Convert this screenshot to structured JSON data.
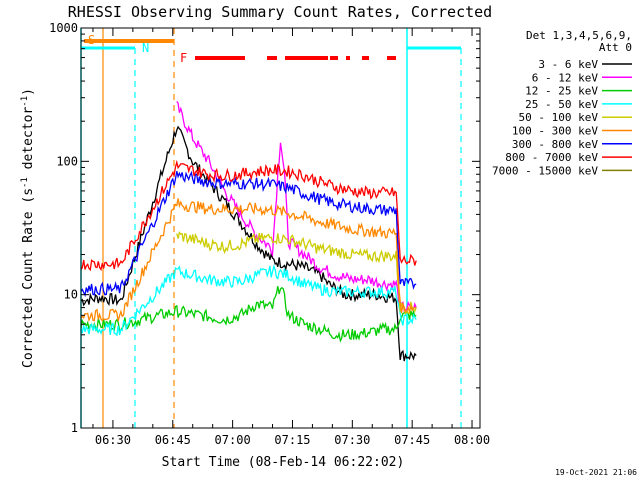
{
  "chart_data": {
    "type": "line",
    "title": "RHESSI Observing Summary Count Rates, Corrected",
    "xlabel": "Start Time (08-Feb-14 06:22:02)",
    "ylabel": "Corrected Count Rate (s",
    "ylabel_sup1": "-1",
    "ylabel_mid": " detector",
    "ylabel_sup2": "-1",
    "ylabel_end": ")",
    "xlim_min": [
      0,
      100
    ],
    "x_tick_minutes": [
      8,
      23,
      38,
      53,
      68,
      83,
      98
    ],
    "x_tick_labels": [
      "06:30",
      "06:45",
      "07:00",
      "07:15",
      "07:30",
      "07:45",
      "08:00"
    ],
    "y_scale": "log",
    "ylim": [
      1,
      1000
    ],
    "y_tick_values": [
      1,
      10,
      100,
      1000
    ],
    "y_tick_labels": [
      "1",
      "10",
      "100",
      "1000"
    ],
    "legend_header": [
      "Det 1,3,4,5,6,9,",
      "Att 0"
    ],
    "legend_placement": "right",
    "series": [
      {
        "name": "3 - 6 keV",
        "color": "#000000",
        "points": [
          [
            0,
            9
          ],
          [
            5,
            9.5
          ],
          [
            10,
            9
          ],
          [
            24,
            180
          ],
          [
            28,
            100
          ],
          [
            32,
            70
          ],
          [
            36,
            50
          ],
          [
            40,
            35
          ],
          [
            44,
            24
          ],
          [
            48,
            18
          ],
          [
            52,
            17
          ],
          [
            56,
            16
          ],
          [
            60,
            14
          ],
          [
            62,
            12
          ],
          [
            64,
            11
          ],
          [
            66,
            10
          ],
          [
            70,
            10
          ],
          [
            74,
            10
          ],
          [
            78,
            9.5
          ],
          [
            79,
            9.5
          ],
          [
            80,
            3.5
          ],
          [
            83,
            3.5
          ],
          [
            84,
            3.5
          ]
        ]
      },
      {
        "name": "6 - 12 keV",
        "color": "#ff00ff",
        "points": [
          [
            24,
            260
          ],
          [
            28,
            150
          ],
          [
            32,
            100
          ],
          [
            36,
            60
          ],
          [
            40,
            40
          ],
          [
            44,
            28
          ],
          [
            48,
            22
          ],
          [
            50,
            150
          ],
          [
            51,
            80
          ],
          [
            52,
            25
          ],
          [
            56,
            20
          ],
          [
            60,
            16
          ],
          [
            64,
            14
          ],
          [
            68,
            13
          ],
          [
            72,
            13
          ],
          [
            76,
            12
          ],
          [
            79,
            12
          ],
          [
            80,
            8
          ],
          [
            84,
            8
          ]
        ]
      },
      {
        "name": "12 - 25 keV",
        "color": "#00cc00",
        "points": [
          [
            0,
            6
          ],
          [
            10,
            6
          ],
          [
            24,
            7.5
          ],
          [
            30,
            7
          ],
          [
            36,
            6.5
          ],
          [
            40,
            7
          ],
          [
            44,
            8.5
          ],
          [
            48,
            8
          ],
          [
            50,
            12
          ],
          [
            52,
            7
          ],
          [
            56,
            6
          ],
          [
            60,
            5.5
          ],
          [
            64,
            5
          ],
          [
            68,
            5
          ],
          [
            72,
            5.2
          ],
          [
            76,
            5.5
          ],
          [
            79,
            5.5
          ],
          [
            80,
            7
          ],
          [
            84,
            7
          ]
        ]
      },
      {
        "name": "25 - 50 keV",
        "color": "#00ffff",
        "points": [
          [
            0,
            5.5
          ],
          [
            10,
            5.5
          ],
          [
            24,
            15
          ],
          [
            28,
            14
          ],
          [
            32,
            13
          ],
          [
            36,
            12.5
          ],
          [
            40,
            12.5
          ],
          [
            44,
            14
          ],
          [
            48,
            15
          ],
          [
            52,
            14
          ],
          [
            56,
            12
          ],
          [
            60,
            11
          ],
          [
            64,
            10.5
          ],
          [
            68,
            10.5
          ],
          [
            72,
            10.5
          ],
          [
            76,
            10.5
          ],
          [
            79,
            10.5
          ],
          [
            80,
            6.5
          ],
          [
            84,
            6.5
          ]
        ]
      },
      {
        "name": "50 - 100 keV",
        "color": "#cccc00",
        "points": [
          [
            24,
            28
          ],
          [
            28,
            26
          ],
          [
            32,
            24
          ],
          [
            36,
            23
          ],
          [
            40,
            24
          ],
          [
            44,
            26
          ],
          [
            48,
            27
          ],
          [
            52,
            26
          ],
          [
            56,
            24
          ],
          [
            60,
            22
          ],
          [
            64,
            21
          ],
          [
            68,
            20
          ],
          [
            72,
            19.5
          ],
          [
            76,
            19.5
          ],
          [
            79,
            19.5
          ],
          [
            80,
            8
          ],
          [
            84,
            8
          ]
        ]
      },
      {
        "name": "100 - 300 keV",
        "color": "#ff8800",
        "points": [
          [
            0,
            7
          ],
          [
            10,
            7
          ],
          [
            24,
            48
          ],
          [
            28,
            46
          ],
          [
            32,
            44
          ],
          [
            36,
            44
          ],
          [
            40,
            44
          ],
          [
            44,
            44
          ],
          [
            48,
            43
          ],
          [
            52,
            41
          ],
          [
            56,
            38
          ],
          [
            60,
            35
          ],
          [
            64,
            33
          ],
          [
            68,
            31
          ],
          [
            72,
            30
          ],
          [
            76,
            29
          ],
          [
            79,
            29
          ],
          [
            80,
            8
          ],
          [
            84,
            8
          ]
        ]
      },
      {
        "name": "300 - 800 keV",
        "color": "#0000ff",
        "points": [
          [
            0,
            11
          ],
          [
            10,
            11
          ],
          [
            24,
            80
          ],
          [
            28,
            74
          ],
          [
            32,
            70
          ],
          [
            36,
            68
          ],
          [
            40,
            68
          ],
          [
            44,
            68
          ],
          [
            48,
            67
          ],
          [
            52,
            63
          ],
          [
            56,
            57
          ],
          [
            60,
            52
          ],
          [
            64,
            48
          ],
          [
            68,
            46
          ],
          [
            72,
            44
          ],
          [
            76,
            43
          ],
          [
            79,
            43
          ],
          [
            80,
            12
          ],
          [
            84,
            12
          ]
        ]
      },
      {
        "name": "800 - 7000 keV",
        "color": "#ff0000",
        "points": [
          [
            0,
            17
          ],
          [
            10,
            17
          ],
          [
            24,
            92
          ],
          [
            28,
            86
          ],
          [
            32,
            80
          ],
          [
            36,
            78
          ],
          [
            40,
            80
          ],
          [
            44,
            84
          ],
          [
            48,
            86
          ],
          [
            52,
            84
          ],
          [
            56,
            78
          ],
          [
            60,
            70
          ],
          [
            64,
            64
          ],
          [
            68,
            60
          ],
          [
            72,
            58
          ],
          [
            76,
            58
          ],
          [
            79,
            58
          ],
          [
            80,
            18
          ],
          [
            84,
            18
          ]
        ]
      },
      {
        "name": "7000 - 15000 keV",
        "color": "#808000",
        "points": []
      }
    ],
    "annotations": [
      {
        "label": "S",
        "color": "#ff8800"
      },
      {
        "label": "N",
        "color": "#00ffff"
      },
      {
        "label": "F",
        "color": "#ff0000"
      }
    ],
    "timestamp": "19-Oct-2021 21:06"
  }
}
